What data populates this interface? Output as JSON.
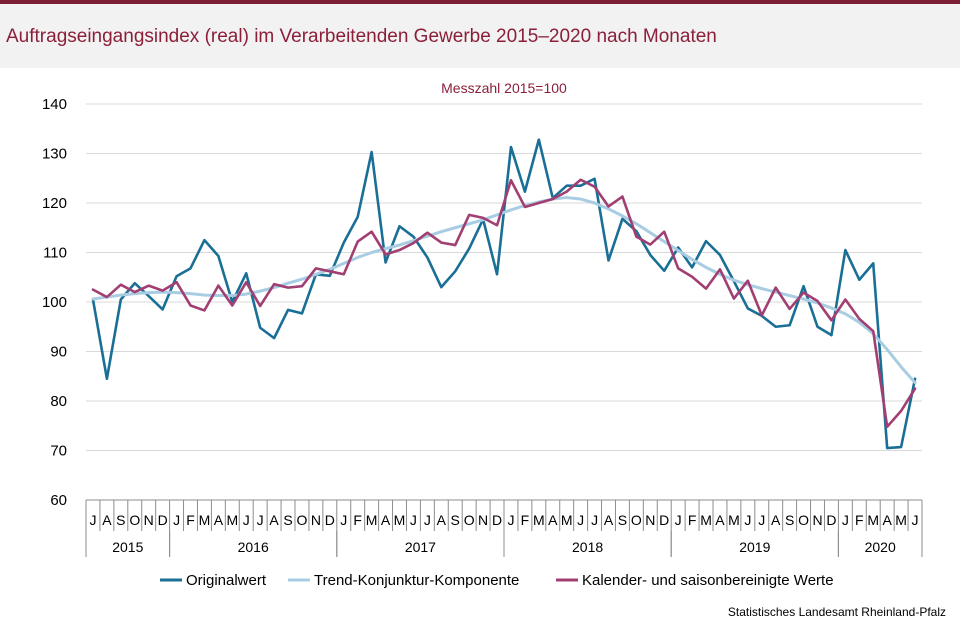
{
  "title": "Auftragseingangsindex (real) im Verarbeitenden Gewerbe 2015–2020 nach Monaten",
  "source": "Statistisches Landesamt Rheinland-Pfalz",
  "chart_data": {
    "type": "line",
    "subtitle": "Messzahl 2015=100",
    "ylim": [
      60,
      140
    ],
    "yticks": [
      60,
      70,
      80,
      90,
      100,
      110,
      120,
      130,
      140
    ],
    "grid": "horizontal",
    "legend_position": "bottom",
    "categories": [
      "J",
      "A",
      "S",
      "O",
      "N",
      "D",
      "J",
      "F",
      "M",
      "A",
      "M",
      "J",
      "J",
      "A",
      "S",
      "O",
      "N",
      "D",
      "J",
      "F",
      "M",
      "A",
      "M",
      "J",
      "J",
      "A",
      "S",
      "O",
      "N",
      "D",
      "J",
      "F",
      "M",
      "A",
      "M",
      "J",
      "J",
      "A",
      "S",
      "O",
      "N",
      "D",
      "J",
      "F",
      "M",
      "A",
      "M",
      "J",
      "J",
      "A",
      "S",
      "O",
      "N",
      "D",
      "J",
      "F",
      "M",
      "A",
      "M",
      "J"
    ],
    "years": [
      {
        "label": "2015",
        "start": 0,
        "end": 6
      },
      {
        "label": "2016",
        "start": 6,
        "end": 18
      },
      {
        "label": "2017",
        "start": 18,
        "end": 30
      },
      {
        "label": "2018",
        "start": 30,
        "end": 42
      },
      {
        "label": "2019",
        "start": 42,
        "end": 54
      },
      {
        "label": "2020",
        "start": 54,
        "end": 60
      }
    ],
    "series": [
      {
        "name": "Originalwert",
        "color": "#1a6f96",
        "values": [
          100.5,
          84.5,
          100.5,
          103.8,
          101.2,
          98.5,
          105.2,
          106.8,
          112.5,
          109.3,
          100.0,
          105.8,
          94.8,
          92.7,
          98.4,
          97.7,
          105.6,
          105.3,
          112.0,
          117.2,
          130.3,
          108.0,
          115.3,
          113.2,
          109.0,
          103.0,
          106.2,
          110.8,
          116.7,
          105.6,
          131.3,
          122.3,
          132.8,
          121.0,
          123.5,
          123.5,
          124.9,
          108.4,
          116.8,
          114.3,
          109.5,
          106.3,
          111.0,
          107.0,
          112.3,
          109.5,
          104.2,
          98.7,
          97.2,
          95.0,
          95.3,
          103.2,
          95.0,
          93.3,
          110.5,
          104.5,
          107.8,
          70.5,
          70.7,
          84.5
        ]
      },
      {
        "name": "Trend-Konjunktur-Komponente",
        "color": "#a8cde3",
        "values": [
          100.6,
          101.0,
          101.4,
          101.7,
          101.9,
          102.0,
          101.9,
          101.7,
          101.4,
          101.3,
          101.3,
          101.6,
          102.2,
          102.9,
          103.8,
          104.6,
          105.6,
          106.6,
          107.8,
          109.0,
          110.0,
          110.8,
          111.5,
          112.4,
          113.3,
          114.2,
          115.0,
          115.8,
          116.6,
          117.6,
          118.6,
          119.5,
          120.2,
          120.8,
          121.1,
          120.8,
          120.0,
          118.8,
          117.4,
          115.8,
          114.0,
          112.2,
          110.4,
          108.6,
          107.0,
          105.6,
          104.4,
          103.5,
          102.7,
          102.0,
          101.3,
          100.6,
          99.8,
          98.8,
          97.6,
          95.9,
          93.6,
          90.4,
          86.9,
          83.7
        ]
      },
      {
        "name": "Kalender- und saisonbereinigte Werte",
        "color": "#a23f72",
        "values": [
          102.5,
          101.0,
          103.5,
          102.0,
          103.3,
          102.3,
          104.0,
          99.3,
          98.3,
          103.3,
          99.3,
          104.0,
          99.2,
          103.6,
          102.9,
          103.2,
          106.8,
          106.2,
          105.6,
          112.2,
          114.2,
          109.6,
          110.5,
          111.9,
          114.0,
          112.0,
          111.5,
          117.6,
          117.0,
          115.5,
          124.6,
          119.2,
          120.0,
          120.8,
          122.3,
          124.7,
          123.3,
          119.3,
          121.3,
          113.2,
          111.6,
          114.2,
          106.8,
          105.1,
          102.7,
          106.6,
          100.7,
          104.3,
          97.3,
          102.9,
          98.6,
          101.9,
          100.2,
          96.3,
          100.5,
          96.6,
          94.1,
          74.8,
          78.0,
          82.5
        ]
      }
    ]
  }
}
